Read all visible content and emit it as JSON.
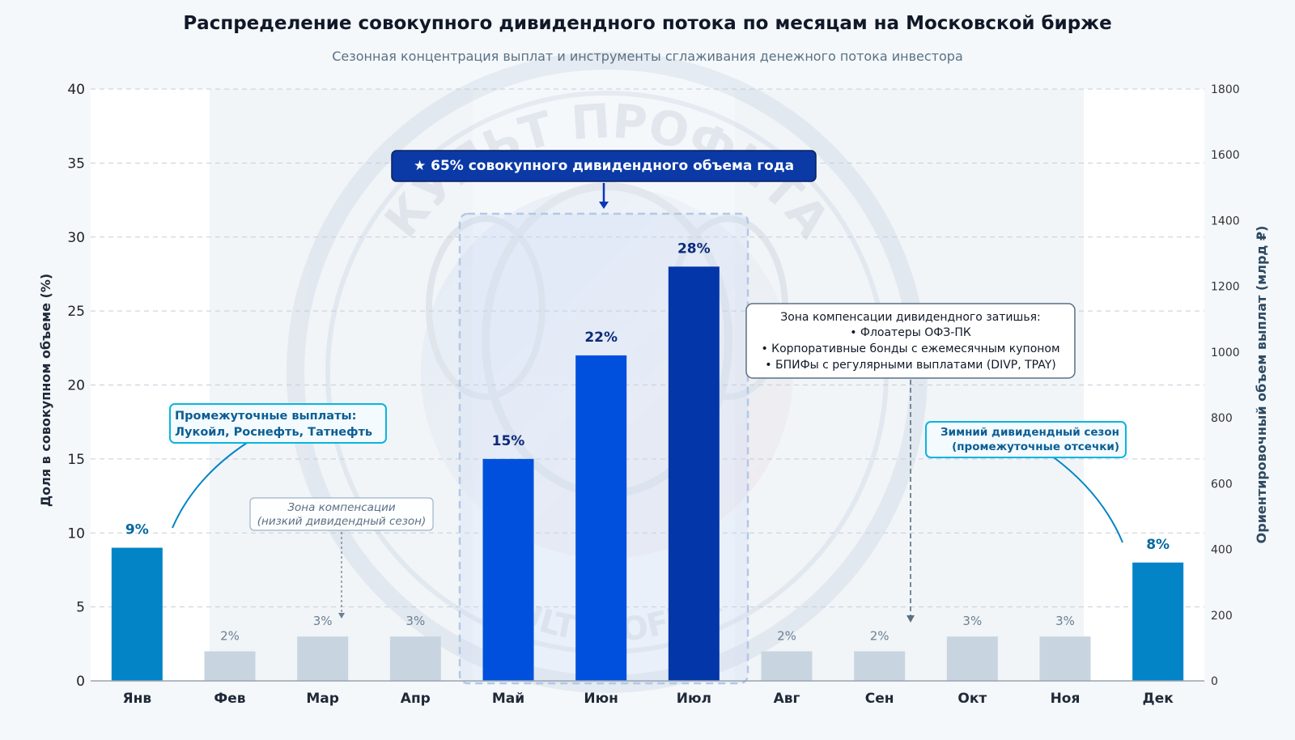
{
  "title": "Распределение совокупного дивидендного потока по месяцам на Московской бирже",
  "subtitle": "Сезонная концентрация выплат и инструменты сглаживания денежного потока инвестора",
  "colors": {
    "peak_light": "#0050dd",
    "peak_dark": "#0336a8",
    "winter": "#0284c7",
    "low": "#c8d5e0",
    "background": "#f4f8fb"
  },
  "watermark": {
    "name": "club-logo-watermark",
    "top_text": "КУЛЬТ ПРОФИТА",
    "bottom_text": "KULTPROFITA"
  },
  "annotations": {
    "peak_banner": "★ 65% совокупного дивидендного объема года",
    "interim": {
      "line1": "Промежуточные выплаты:",
      "line2": "Лукойл, Роснефть, Татнефть"
    },
    "compensation_zone": {
      "line1": "Зона компенсации",
      "line2": "(низкий дивидендный сезон)"
    },
    "lull_box": {
      "line1": "Зона компенсации дивидендного затишья:",
      "line2": "• Флоатеры ОФЗ-ПК",
      "line3": "• Корпоративные бонды с ежемесячным купоном",
      "line4": "• БПИФы с регулярными выплатами (DIVP, TPAY)"
    },
    "winter": {
      "line1": "Зимний дивидендный сезон",
      "line2": "(промежуточные отсечки)"
    }
  },
  "chart_data": {
    "type": "bar",
    "title": "Распределение совокупного дивидендного потока по месяцам на Московской бирже",
    "subtitle": "Сезонная концентрация выплат и инструменты сглаживания денежного потока инвестора",
    "categories": [
      "Янв",
      "Фев",
      "Мар",
      "Апр",
      "Май",
      "Июн",
      "Июл",
      "Авг",
      "Сен",
      "Окт",
      "Ноя",
      "Дек"
    ],
    "values": [
      9,
      2,
      3,
      3,
      15,
      22,
      28,
      2,
      2,
      3,
      3,
      8
    ],
    "data_labels": [
      "9%",
      "2%",
      "3%",
      "3%",
      "15%",
      "22%",
      "28%",
      "2%",
      "2%",
      "3%",
      "3%",
      "8%"
    ],
    "groups": [
      "winter",
      "low",
      "low",
      "low",
      "peak",
      "peak",
      "peak",
      "low",
      "low",
      "low",
      "low",
      "winter"
    ],
    "ylabel": "Доля в совокупном объеме (%)",
    "ylim": [
      0,
      40
    ],
    "yticks": [
      0,
      5,
      10,
      15,
      20,
      25,
      30,
      35,
      40
    ],
    "y2label": "Ориентировочный объем выплат (млрд ₽)",
    "y2lim": [
      0,
      1800
    ],
    "y2ticks": [
      0,
      200,
      400,
      600,
      800,
      1000,
      1200,
      1400,
      1600,
      1800
    ],
    "grid": true,
    "peak_share_percent": 65
  }
}
